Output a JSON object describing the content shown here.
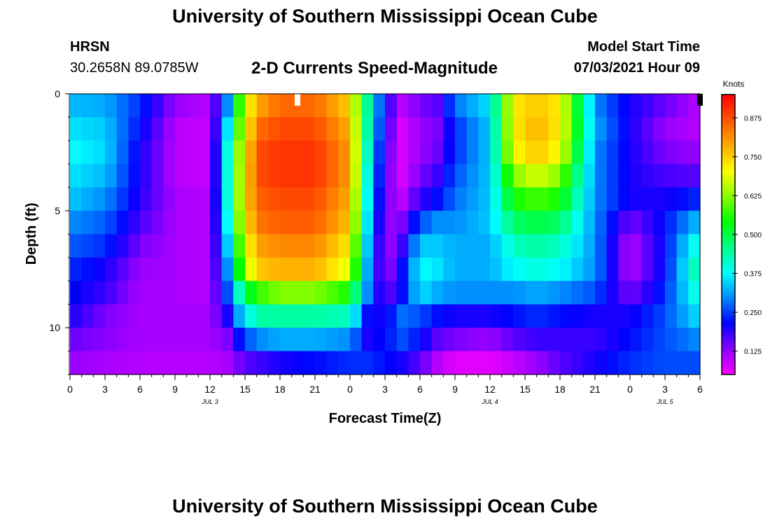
{
  "header": {
    "title": "University of Southern Mississippi Ocean Cube",
    "station_code": "HRSN",
    "station_coords": "30.2658N  89.0785W",
    "chart_title": "2-D Currents Speed-Magnitude",
    "model_start_label": "Model Start Time",
    "model_start_value": "07/03/2021 Hour 09"
  },
  "footer": {
    "title": "University of Southern Mississippi Ocean Cube"
  },
  "chart_data": {
    "type": "heatmap",
    "title": "2-D Currents Speed-Magnitude",
    "xlabel": "Forecast Time(Z)",
    "ylabel": "Depth (ft)",
    "x_tick_labels": [
      "0",
      "3",
      "6",
      "9",
      "12",
      "15",
      "18",
      "21",
      "0",
      "3",
      "6",
      "9",
      "12",
      "15",
      "18",
      "21",
      "0",
      "3",
      "6"
    ],
    "x_range_hours": [
      0,
      54
    ],
    "day_labels": [
      {
        "text": "JUL 3",
        "hour": 12
      },
      {
        "text": "JUL 4",
        "hour": 36
      },
      {
        "text": "JUL 5",
        "hour": 51
      }
    ],
    "y_tick_labels": [
      "0",
      "5",
      "10"
    ],
    "y_tick_values": [
      0,
      5,
      10
    ],
    "ylim": [
      0,
      12
    ],
    "depth_levels_ft": [
      0.5,
      1.5,
      2.5,
      3.5,
      4.5,
      5.5,
      6.5,
      7.5,
      8.5,
      9.5,
      10.5,
      11.5
    ],
    "time_hours": [
      0,
      3,
      6,
      9,
      12,
      13.5,
      15,
      16.5,
      18,
      21,
      24,
      25.5,
      27,
      28.5,
      30,
      31.5,
      33,
      36,
      38,
      40,
      42,
      45,
      48,
      51,
      54
    ],
    "speed_knots": [
      [
        0.33,
        0.32,
        0.24,
        0.12,
        0.1,
        0.3,
        0.7,
        0.8,
        0.85,
        0.85,
        0.75,
        0.45,
        0.2,
        0.1,
        0.14,
        0.16,
        0.28,
        0.36,
        0.72,
        0.76,
        0.72,
        0.3,
        0.2,
        0.15,
        0.1
      ],
      [
        0.36,
        0.34,
        0.22,
        0.1,
        0.09,
        0.36,
        0.72,
        0.85,
        0.88,
        0.88,
        0.78,
        0.44,
        0.18,
        0.08,
        0.12,
        0.14,
        0.24,
        0.34,
        0.72,
        0.78,
        0.72,
        0.32,
        0.2,
        0.12,
        0.1
      ],
      [
        0.38,
        0.35,
        0.2,
        0.1,
        0.09,
        0.4,
        0.75,
        0.88,
        0.9,
        0.9,
        0.8,
        0.42,
        0.16,
        0.08,
        0.12,
        0.15,
        0.24,
        0.34,
        0.7,
        0.76,
        0.7,
        0.3,
        0.2,
        0.14,
        0.12
      ],
      [
        0.36,
        0.33,
        0.2,
        0.1,
        0.09,
        0.4,
        0.76,
        0.88,
        0.9,
        0.9,
        0.8,
        0.4,
        0.15,
        0.08,
        0.14,
        0.18,
        0.26,
        0.34,
        0.62,
        0.68,
        0.62,
        0.3,
        0.2,
        0.17,
        0.16
      ],
      [
        0.34,
        0.3,
        0.19,
        0.11,
        0.1,
        0.4,
        0.76,
        0.86,
        0.88,
        0.88,
        0.78,
        0.38,
        0.14,
        0.1,
        0.18,
        0.22,
        0.28,
        0.34,
        0.55,
        0.58,
        0.55,
        0.3,
        0.2,
        0.2,
        0.24
      ],
      [
        0.3,
        0.27,
        0.17,
        0.11,
        0.1,
        0.38,
        0.74,
        0.84,
        0.86,
        0.86,
        0.76,
        0.36,
        0.12,
        0.14,
        0.26,
        0.3,
        0.3,
        0.34,
        0.48,
        0.5,
        0.48,
        0.3,
        0.14,
        0.22,
        0.34
      ],
      [
        0.27,
        0.24,
        0.14,
        0.11,
        0.1,
        0.34,
        0.7,
        0.8,
        0.82,
        0.82,
        0.72,
        0.34,
        0.1,
        0.18,
        0.34,
        0.34,
        0.32,
        0.32,
        0.42,
        0.44,
        0.42,
        0.3,
        0.1,
        0.22,
        0.42
      ],
      [
        0.24,
        0.2,
        0.12,
        0.11,
        0.1,
        0.3,
        0.66,
        0.76,
        0.78,
        0.78,
        0.68,
        0.32,
        0.1,
        0.22,
        0.38,
        0.36,
        0.32,
        0.32,
        0.38,
        0.4,
        0.38,
        0.3,
        0.1,
        0.22,
        0.46
      ],
      [
        0.22,
        0.18,
        0.11,
        0.11,
        0.1,
        0.26,
        0.5,
        0.58,
        0.62,
        0.62,
        0.55,
        0.3,
        0.14,
        0.22,
        0.36,
        0.32,
        0.3,
        0.3,
        0.3,
        0.32,
        0.3,
        0.26,
        0.14,
        0.24,
        0.42
      ],
      [
        0.2,
        0.14,
        0.11,
        0.11,
        0.11,
        0.2,
        0.38,
        0.44,
        0.44,
        0.44,
        0.42,
        0.22,
        0.2,
        0.28,
        0.26,
        0.22,
        0.2,
        0.2,
        0.22,
        0.24,
        0.22,
        0.2,
        0.2,
        0.26,
        0.36
      ],
      [
        0.15,
        0.13,
        0.11,
        0.11,
        0.11,
        0.14,
        0.26,
        0.3,
        0.32,
        0.32,
        0.3,
        0.2,
        0.22,
        0.26,
        0.22,
        0.16,
        0.14,
        0.12,
        0.16,
        0.18,
        0.18,
        0.18,
        0.22,
        0.26,
        0.3
      ],
      [
        0.12,
        0.11,
        0.1,
        0.1,
        0.1,
        0.11,
        0.16,
        0.18,
        0.2,
        0.22,
        0.24,
        0.24,
        0.22,
        0.2,
        0.16,
        0.1,
        0.07,
        0.07,
        0.09,
        0.12,
        0.16,
        0.2,
        0.24,
        0.26,
        0.26
      ]
    ],
    "colorbar": {
      "title": "Knots",
      "min": 0.05,
      "max": 0.95,
      "tick_labels": [
        "0.875",
        "0.750",
        "0.625",
        "0.500",
        "0.375",
        "0.250",
        "0.125"
      ],
      "tick_values": [
        0.875,
        0.75,
        0.625,
        0.5,
        0.375,
        0.25,
        0.125
      ],
      "colors": [
        "#ff00ff",
        "#8800ff",
        "#0000ff",
        "#0088ff",
        "#00ffff",
        "#00ff88",
        "#00ff00",
        "#88ff00",
        "#ffff00",
        "#ffaa00",
        "#ff5500",
        "#ff0000"
      ]
    },
    "markers": [
      {
        "type": "white-bar",
        "hour": 19.5,
        "color": "#ffffff"
      },
      {
        "type": "black-bar",
        "hour": 54,
        "color": "#000000"
      }
    ]
  }
}
